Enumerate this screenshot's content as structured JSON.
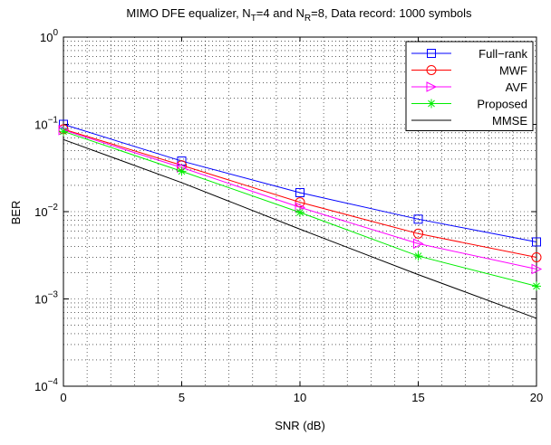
{
  "chart_data": {
    "type": "line",
    "title_parts": {
      "a": "MIMO DFE equalizer, N",
      "a_sub": "T",
      "b": "=4 and N",
      "b_sub": "R",
      "c": "=8, Data record: 1000 symbols"
    },
    "xlabel": "SNR (dB)",
    "ylabel": "BER",
    "x": [
      0,
      5,
      10,
      15,
      20
    ],
    "xlim": [
      0,
      20
    ],
    "ylim": [
      0.0001,
      1
    ],
    "yscale": "log",
    "grid": true,
    "legend_position": "top-right",
    "x_ticks": [
      "0",
      "5",
      "10",
      "15",
      "20"
    ],
    "y_ticks": [
      {
        "base": "10",
        "exp": "0"
      },
      {
        "base": "10",
        "exp": "−1"
      },
      {
        "base": "10",
        "exp": "−2"
      },
      {
        "base": "10",
        "exp": "−3"
      },
      {
        "base": "10",
        "exp": "−4"
      }
    ],
    "series": [
      {
        "name": "Full−rank",
        "color": "#0000ff",
        "marker": "square",
        "values": [
          0.1,
          0.038,
          0.0165,
          0.0082,
          0.0045
        ]
      },
      {
        "name": "MWF",
        "color": "#ff0000",
        "marker": "circle",
        "values": [
          0.088,
          0.034,
          0.0128,
          0.0056,
          0.003
        ]
      },
      {
        "name": "AVF",
        "color": "#ff00ff",
        "marker": "triangle-right",
        "values": [
          0.086,
          0.032,
          0.0112,
          0.0043,
          0.0022
        ]
      },
      {
        "name": "Proposed",
        "color": "#00ee00",
        "marker": "asterisk",
        "values": [
          0.083,
          0.029,
          0.0098,
          0.0031,
          0.0014
        ]
      },
      {
        "name": "MMSE",
        "color": "#000000",
        "marker": "none",
        "values": [
          0.067,
          0.0215,
          0.0063,
          0.0019,
          0.0006
        ]
      }
    ]
  }
}
